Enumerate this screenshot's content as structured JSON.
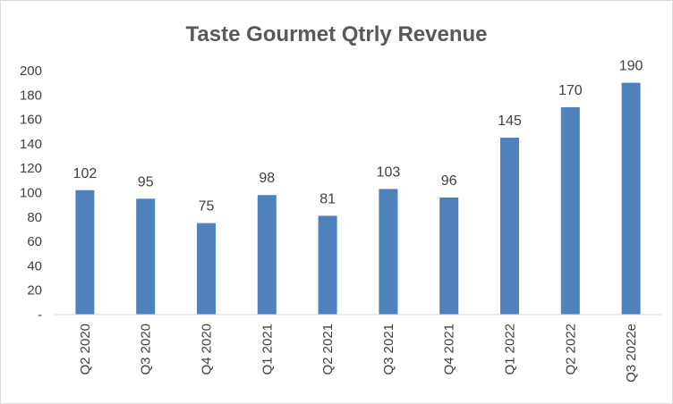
{
  "chart_data": {
    "type": "bar",
    "title": "Taste Gourmet Qtrly Revenue",
    "categories": [
      "Q2 2020",
      "Q3 2020",
      "Q4 2020",
      "Q1 2021",
      "Q2 2021",
      "Q3 2021",
      "Q4 2021",
      "Q1 2022",
      "Q2 2022",
      "Q3 2022e"
    ],
    "values": [
      102,
      95,
      75,
      98,
      81,
      103,
      96,
      145,
      170,
      190
    ],
    "data_labels": [
      "102",
      "95",
      "75",
      "98",
      "81",
      "103",
      "96",
      "145",
      "170",
      "190"
    ],
    "xlabel": "",
    "ylabel": "",
    "ylim": [
      0,
      200
    ],
    "yticks": [
      0,
      20,
      40,
      60,
      80,
      100,
      120,
      140,
      160,
      180,
      200
    ],
    "ytick_labels": [
      "-",
      "20",
      "40",
      "60",
      "80",
      "100",
      "120",
      "140",
      "160",
      "180",
      "200"
    ],
    "grid": false,
    "legend": "none",
    "bar_color": "#4f81bd"
  }
}
